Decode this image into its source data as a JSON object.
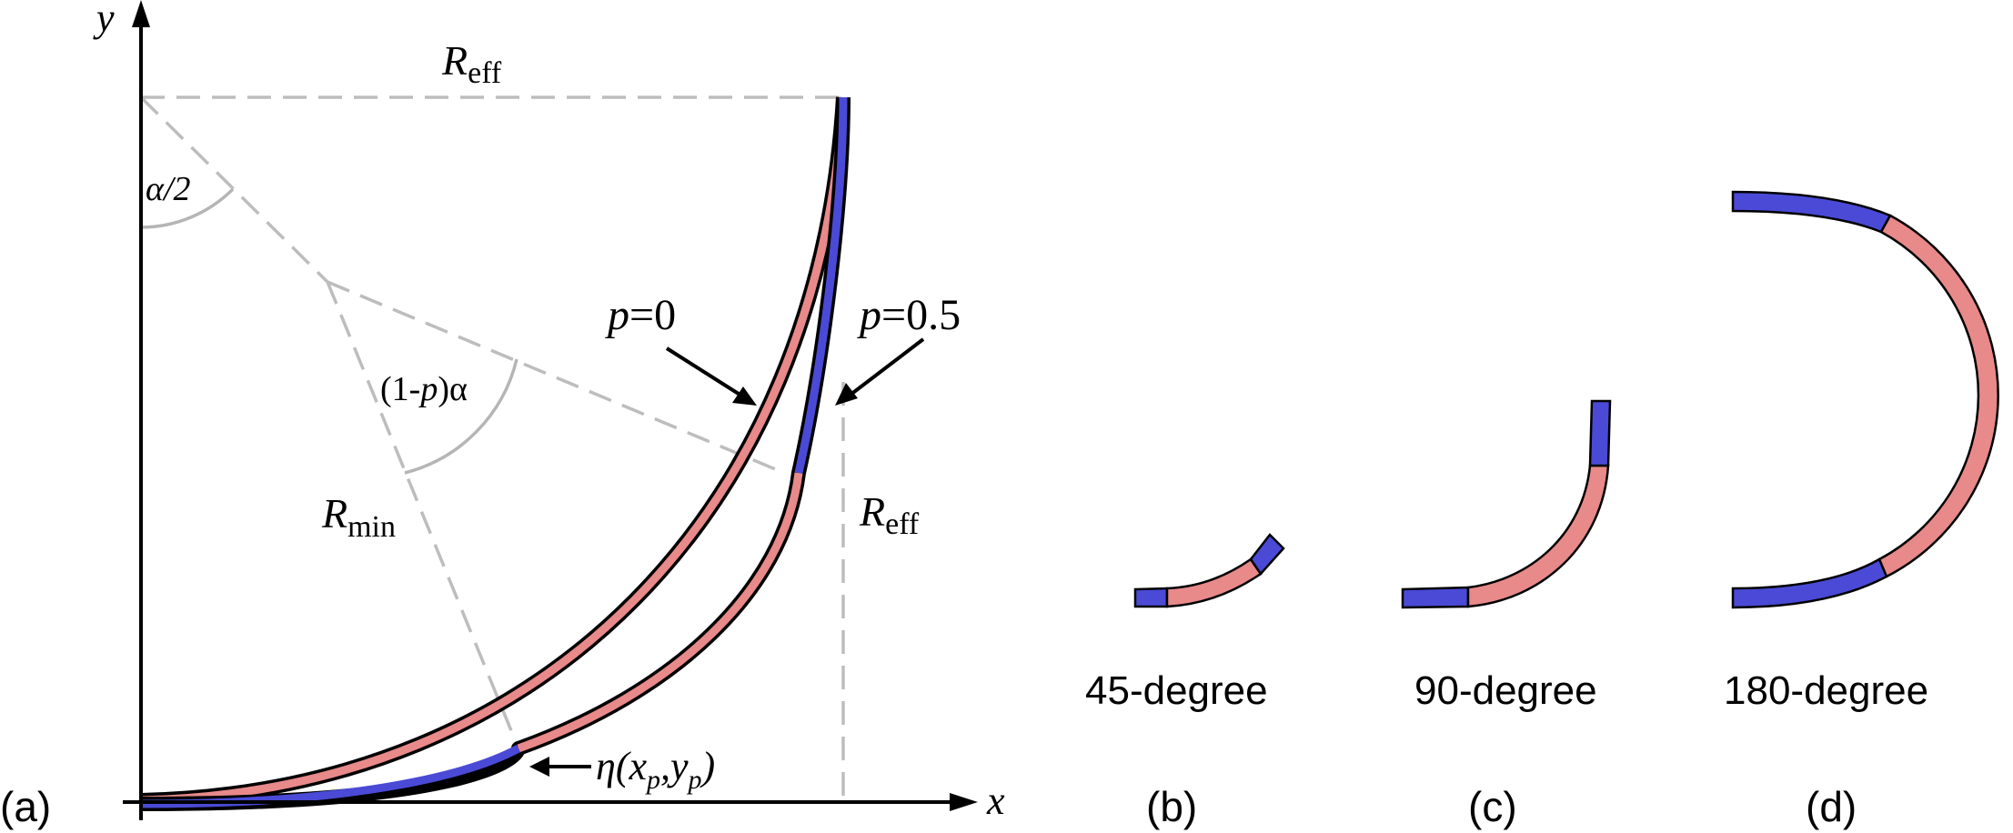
{
  "colors": {
    "straight_segment": "#4a4ad6",
    "curved_segment": "#e8898a",
    "guide_line": "#bdbdbd",
    "outline": "#000000"
  },
  "panel_a": {
    "label": "(a)",
    "axis_x": "x",
    "axis_y": "y",
    "r_eff_top": {
      "base": "R",
      "sub": "eff"
    },
    "r_eff_right": {
      "base": "R",
      "sub": "eff"
    },
    "r_min": {
      "base": "R",
      "sub": "min"
    },
    "alpha_half": "α/2",
    "angle_label": {
      "pre": "(1-",
      "var": "p",
      "post": ")α"
    },
    "p0_label": {
      "var": "p",
      "eq": "=0"
    },
    "p05_label": {
      "var": "p",
      "eq": "=0.5"
    },
    "eta_label": {
      "pre": "η(x",
      "sub1": "p",
      "mid": ",y",
      "sub2": "p",
      "post": ")"
    }
  },
  "panel_b": {
    "label": "(b)",
    "caption": "45-degree"
  },
  "panel_c": {
    "label": "(c)",
    "caption": "90-degree"
  },
  "panel_d": {
    "label": "(d)",
    "caption": "180-degree"
  }
}
